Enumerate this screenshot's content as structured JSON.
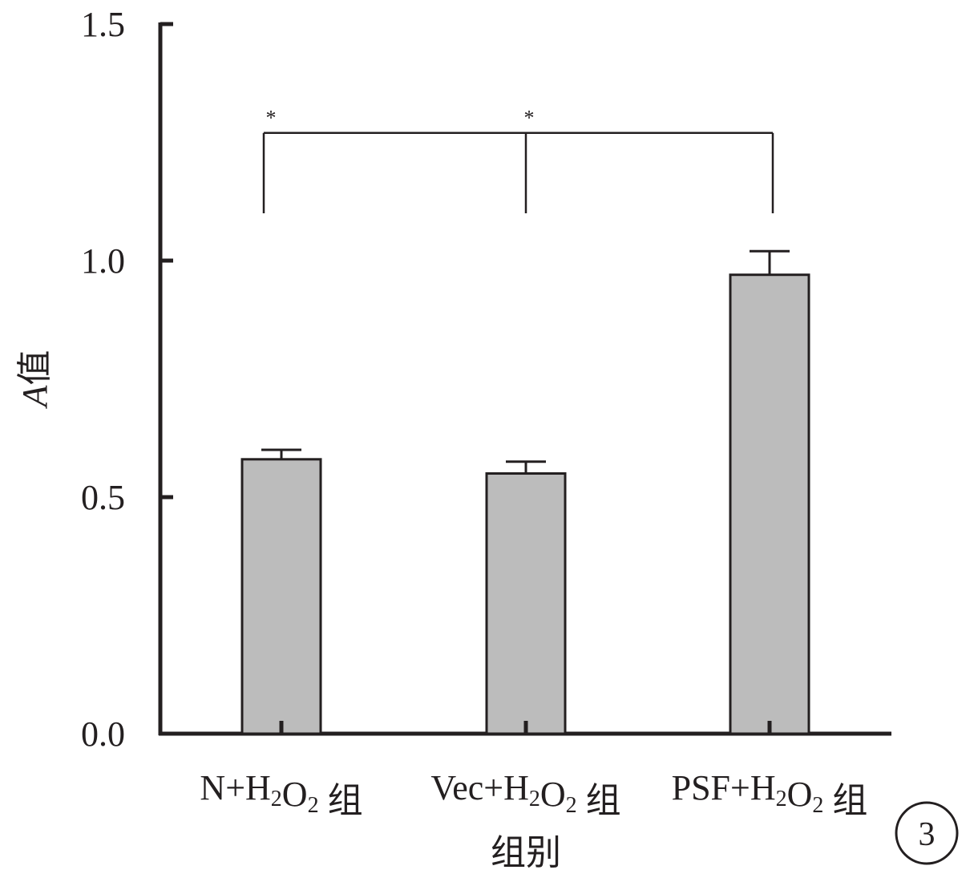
{
  "chart_data": {
    "type": "bar",
    "xlabel": "组别",
    "ylabel": "A值",
    "ylabel_parts": {
      "italic": "A",
      "rest": "值"
    },
    "categories": [
      {
        "label": "N+H₂O₂ 组",
        "parts": {
          "pre": "N+H",
          "sub1": "2",
          "mid": "O",
          "sub2": "2",
          "post": " 组"
        }
      },
      {
        "label": "Vec+H₂O₂ 组",
        "parts": {
          "pre": "Vec+H",
          "sub1": "2",
          "mid": "O",
          "sub2": "2",
          "post": " 组"
        }
      },
      {
        "label": "PSF+H₂O₂ 组",
        "parts": {
          "pre": "PSF+H",
          "sub1": "2",
          "mid": "O",
          "sub2": "2",
          "post": " 组"
        }
      }
    ],
    "values": [
      0.58,
      0.55,
      0.97
    ],
    "errors": [
      0.02,
      0.025,
      0.05
    ],
    "ylim": [
      0,
      1.5
    ],
    "yticks": [
      "0.0",
      "0.5",
      "1.0",
      "1.5"
    ],
    "significance": {
      "bracket_level": 1.27,
      "drop_level": 1.1,
      "marks": [
        {
          "from": 0,
          "to": 2,
          "label": "*"
        },
        {
          "from": 1,
          "to": 2,
          "label": "*"
        }
      ]
    },
    "panel_label": "3",
    "grid": false,
    "legend": "none",
    "colors": {
      "bar": "#bcbcbc",
      "ink": "#231f20"
    }
  }
}
